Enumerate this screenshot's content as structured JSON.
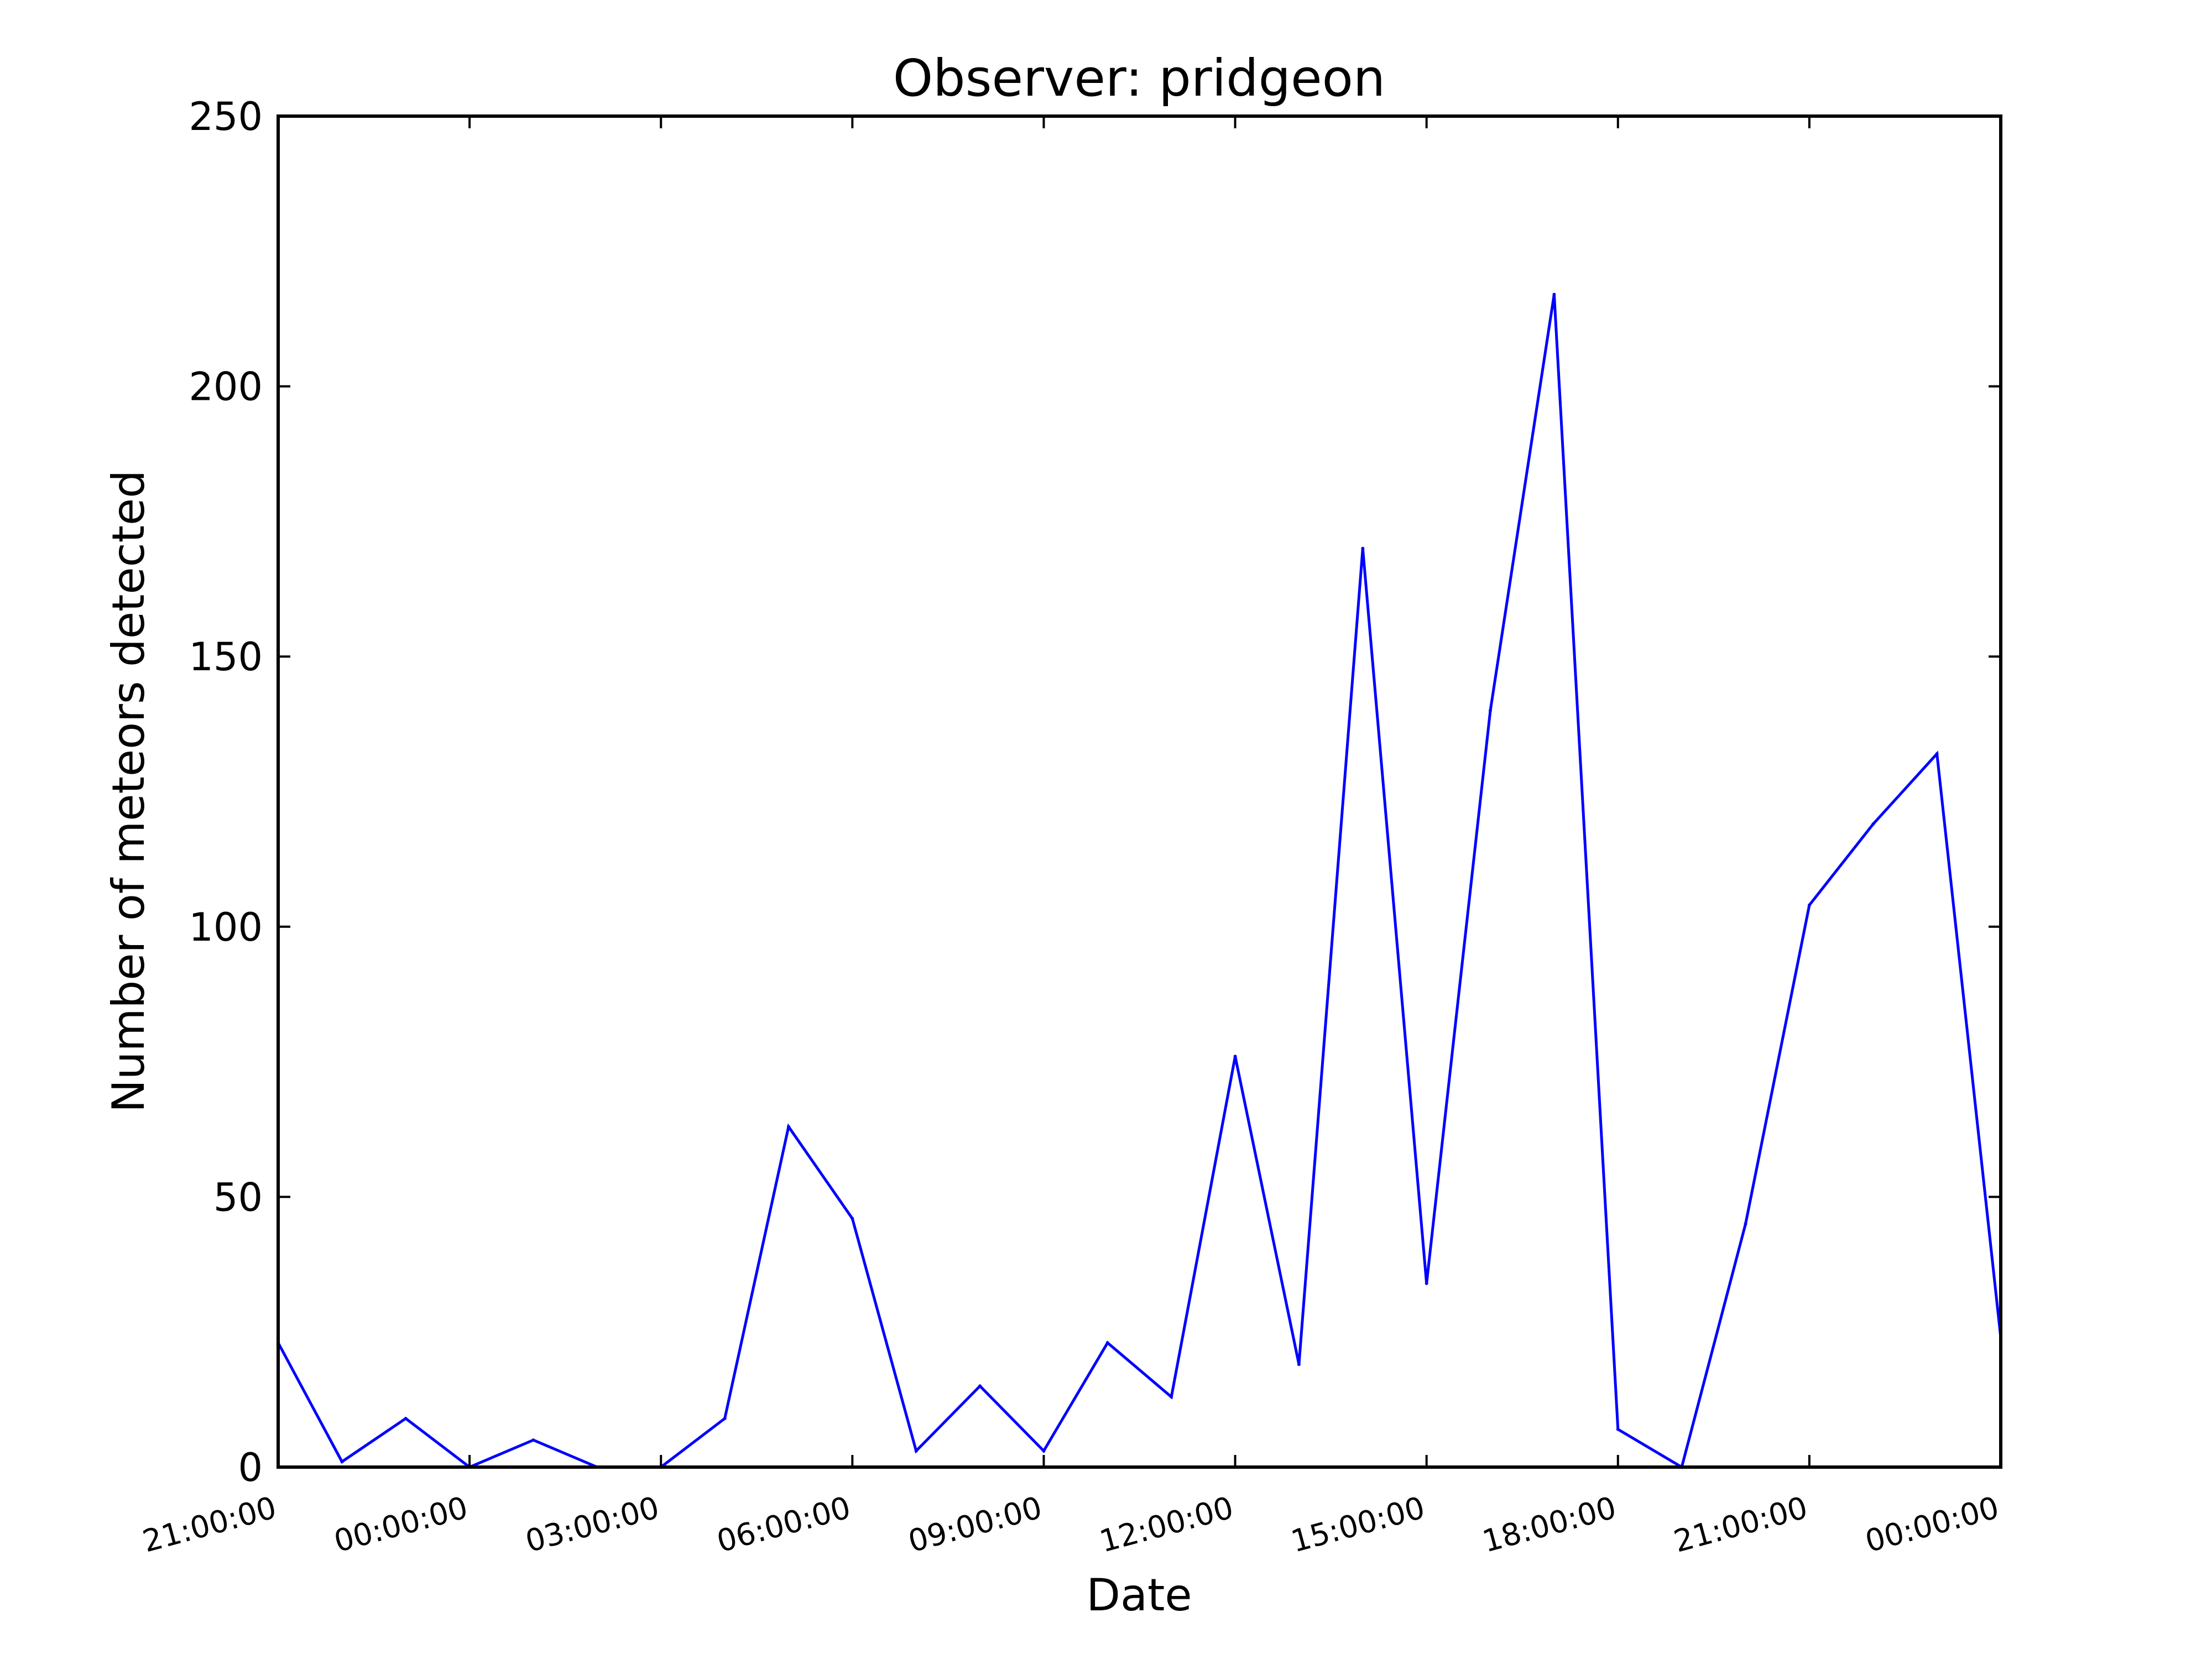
{
  "chart_data": {
    "type": "line",
    "title": "Observer: pridgeon",
    "xlabel": "Date",
    "ylabel": "Number of meteors detected",
    "ylim": [
      0,
      250
    ],
    "yticks": [
      0,
      50,
      100,
      150,
      200,
      250
    ],
    "xticks": [
      "21:00:00",
      "00:00:00",
      "03:00:00",
      "06:00:00",
      "09:00:00",
      "12:00:00",
      "15:00:00",
      "18:00:00",
      "21:00:00",
      "00:00:00"
    ],
    "xtick_hours": [
      0,
      3,
      6,
      9,
      12,
      15,
      18,
      21,
      24,
      27
    ],
    "grid": false,
    "series": [
      {
        "color": "#0000ff",
        "x": [
          0,
          1,
          2,
          3,
          4,
          5,
          6,
          7,
          8,
          9,
          10,
          11,
          12,
          13,
          14,
          15,
          16,
          17,
          18,
          19,
          20,
          21,
          22,
          23,
          24,
          25,
          26,
          27
        ],
        "values": [
          23,
          1,
          9,
          0,
          5,
          0,
          0,
          9,
          63,
          46,
          3,
          15,
          3,
          23,
          13,
          76,
          19,
          170,
          34,
          140,
          217,
          7,
          0,
          45,
          104,
          119,
          132,
          24
        ]
      }
    ]
  }
}
